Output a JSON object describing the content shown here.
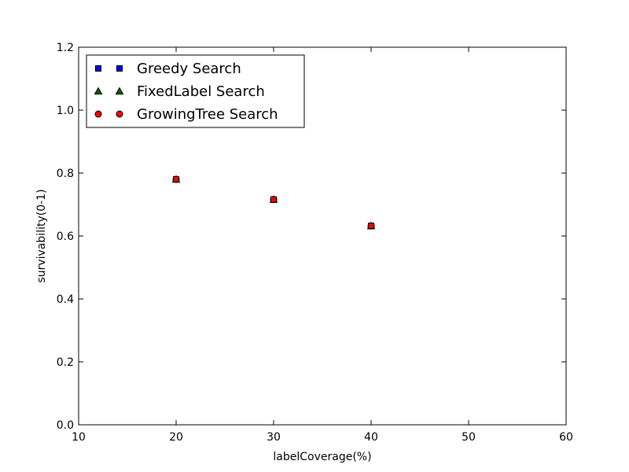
{
  "chart_data": {
    "type": "scatter",
    "title": "",
    "xlabel": "labelCoverage(%)",
    "ylabel": "survivability(0-1)",
    "xlim": [
      10,
      60
    ],
    "ylim": [
      0.0,
      1.2
    ],
    "xticks": [
      "10",
      "20",
      "30",
      "40",
      "50",
      "60"
    ],
    "yticks": [
      "0.0",
      "0.2",
      "0.4",
      "0.6",
      "0.8",
      "1.0",
      "1.2"
    ],
    "grid": false,
    "legend_position": "top-left",
    "series": [
      {
        "name": "Greedy Search",
        "marker": "square",
        "color": "#0000ff",
        "points": [
          {
            "x": 20,
            "y": 0.78
          },
          {
            "x": 30,
            "y": 0.716
          },
          {
            "x": 40,
            "y": 0.632
          }
        ]
      },
      {
        "name": "FixedLabel Search",
        "marker": "triangle",
        "color": "#006400",
        "points": [
          {
            "x": 20,
            "y": 0.78
          },
          {
            "x": 30,
            "y": 0.716
          },
          {
            "x": 40,
            "y": 0.632
          }
        ]
      },
      {
        "name": "GrowingTree Search",
        "marker": "circle",
        "color": "#ff0000",
        "points": [
          {
            "x": 20,
            "y": 0.78
          },
          {
            "x": 30,
            "y": 0.716
          },
          {
            "x": 40,
            "y": 0.632
          }
        ]
      }
    ],
    "overlay_marker_color": "#ff0000"
  }
}
